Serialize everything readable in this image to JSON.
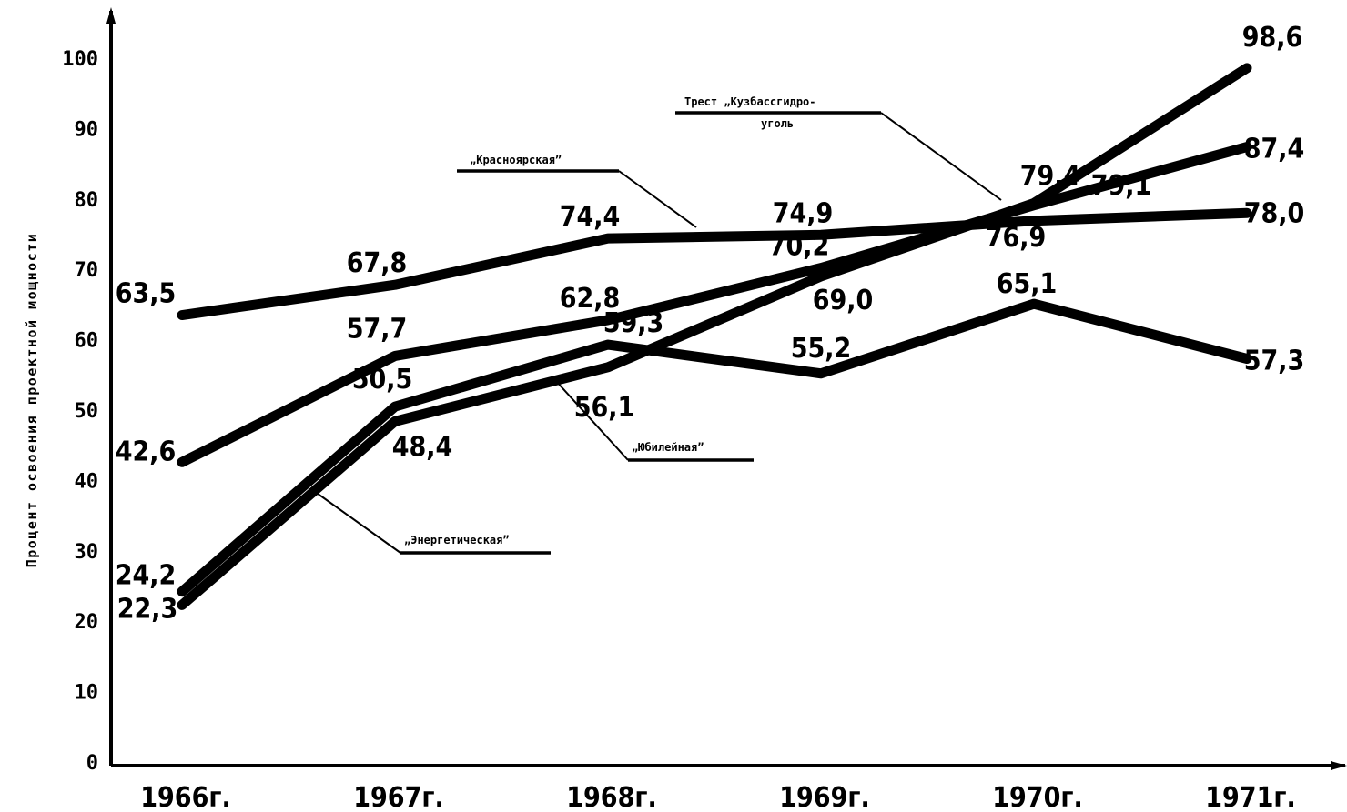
{
  "chart_data": {
    "type": "line",
    "title": "",
    "xlabel": "",
    "ylabel": "Процент освоения проектной мощности",
    "categories": [
      "1966г.",
      "1967г.",
      "1968г.",
      "1969г.",
      "1970г.",
      "1971г."
    ],
    "ylim": [
      0,
      100
    ],
    "yticks": [
      0,
      10,
      20,
      30,
      40,
      50,
      60,
      70,
      80,
      90,
      100
    ],
    "grid": false,
    "legend": "none",
    "series": [
      {
        "name": "„Красноярская”",
        "values": [
          63.5,
          67.8,
          74.4,
          74.9,
          76.9,
          78.0
        ],
        "value_labels": [
          "63,5",
          "67,8",
          "74,4",
          "74,9",
          "76,9",
          "78,0"
        ]
      },
      {
        "name": "Трест „Кузбассгидроуголь”",
        "name_lines": [
          "Трест „Кузбассгидро-",
          "уголь"
        ],
        "values": [
          42.6,
          57.7,
          62.8,
          70.2,
          79.1,
          87.4
        ],
        "value_labels": [
          "42,6",
          "57,7",
          "62,8",
          "70,2",
          "79,1",
          "87,4"
        ]
      },
      {
        "name": "„Юбилейная”",
        "values": [
          24.2,
          50.5,
          59.3,
          55.2,
          65.1,
          57.3
        ],
        "value_labels": [
          "24,2",
          "50,5",
          "59,3",
          "55,2",
          "65,1",
          "57,3"
        ]
      },
      {
        "name": "„Энергетическая”",
        "values": [
          22.3,
          48.4,
          56.1,
          69.0,
          79.4,
          98.6
        ],
        "value_labels": [
          "22,3",
          "48,4",
          "56,1",
          "69,0",
          "79,4",
          "98,6"
        ]
      }
    ]
  }
}
